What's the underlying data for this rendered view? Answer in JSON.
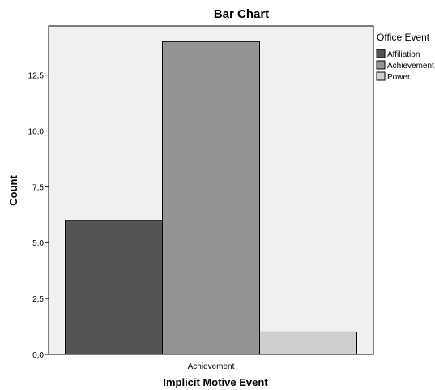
{
  "chart_data": {
    "type": "bar",
    "title": "Bar Chart",
    "xlabel": "Implicit Motive Event",
    "ylabel": "Count",
    "categories": [
      "Achievement"
    ],
    "series": [
      {
        "name": "Affiliation",
        "values": [
          6
        ],
        "color": "#545454"
      },
      {
        "name": "Achievement",
        "values": [
          14
        ],
        "color": "#949494"
      },
      {
        "name": "Power",
        "values": [
          1
        ],
        "color": "#cfcfcf"
      }
    ],
    "ylim": [
      0,
      14.7
    ],
    "yticks": [
      0,
      2.5,
      5,
      7.5,
      10,
      12.5
    ],
    "ytick_labels": [
      "0,0",
      "2,5",
      "5,0",
      "7,5",
      "10,0",
      "12,5"
    ],
    "grid": false,
    "legend": {
      "title": "Office Event",
      "position": "right"
    },
    "plot_background": "#f0f0f0"
  }
}
